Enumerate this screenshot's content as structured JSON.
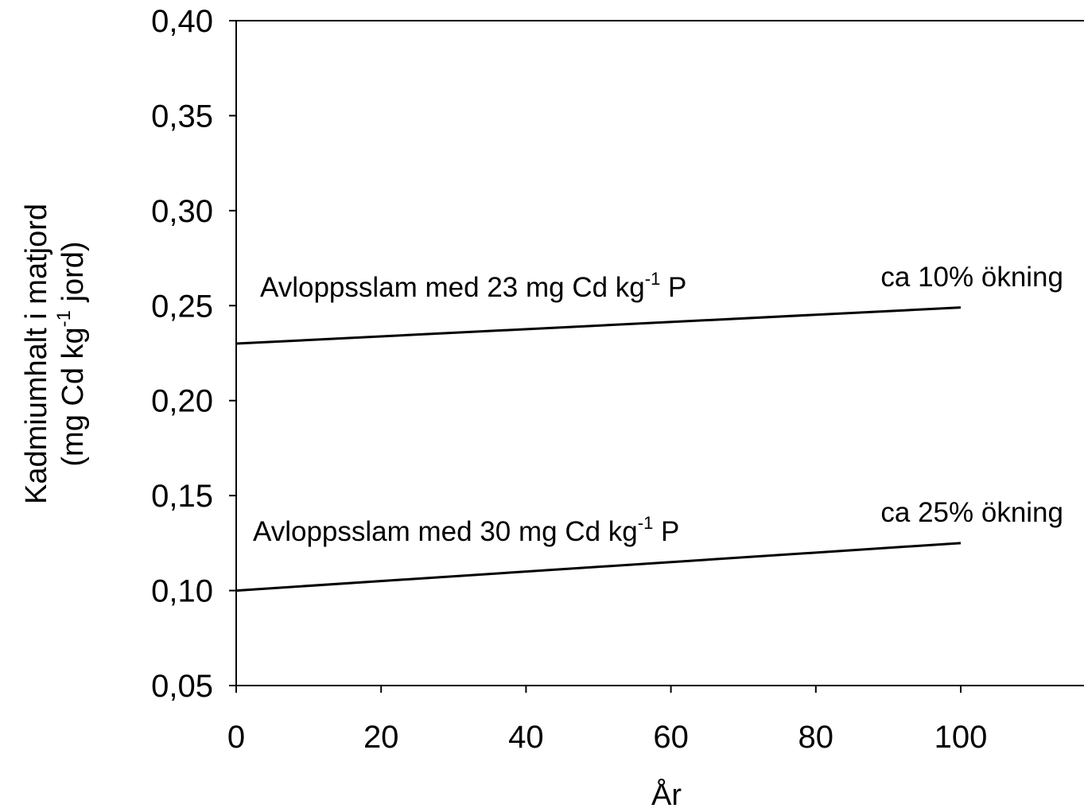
{
  "chart_data": {
    "type": "line",
    "x_label": "År",
    "y_label": {
      "line1": "Kadmiumhalt i matjord",
      "line2": "(mg Cd kg",
      "line2_sup": "-1",
      "line2_tail": " jord)"
    },
    "x": [
      0,
      100
    ],
    "series": [
      {
        "color": "#000000",
        "values": [
          0.23,
          0.249
        ]
      },
      {
        "color": "#000000",
        "values": [
          0.1,
          0.125
        ]
      }
    ],
    "xlim": [
      0,
      117
    ],
    "xticks": [
      0,
      20,
      40,
      60,
      80,
      100
    ],
    "ylim": [
      0.05,
      0.4
    ],
    "yticks": [
      {
        "value": 0.05,
        "label": "0,05"
      },
      {
        "value": 0.1,
        "label": "0,10"
      },
      {
        "value": 0.15,
        "label": "0,15"
      },
      {
        "value": 0.2,
        "label": "0,20"
      },
      {
        "value": 0.25,
        "label": "0,25"
      },
      {
        "value": 0.3,
        "label": "0,30"
      },
      {
        "value": 0.35,
        "label": "0,35"
      },
      {
        "value": 0.4,
        "label": "0,40"
      }
    ],
    "annotations": [
      {
        "text": "Avloppsslam med 23 mg Cd kg",
        "sup": "-1",
        "tail": " P"
      },
      {
        "text": "ca 10% ökning"
      },
      {
        "text": "Avloppsslam med 30 mg Cd kg",
        "sup": "-1",
        "tail": " P"
      },
      {
        "text": "ca 25% ökning"
      }
    ]
  }
}
